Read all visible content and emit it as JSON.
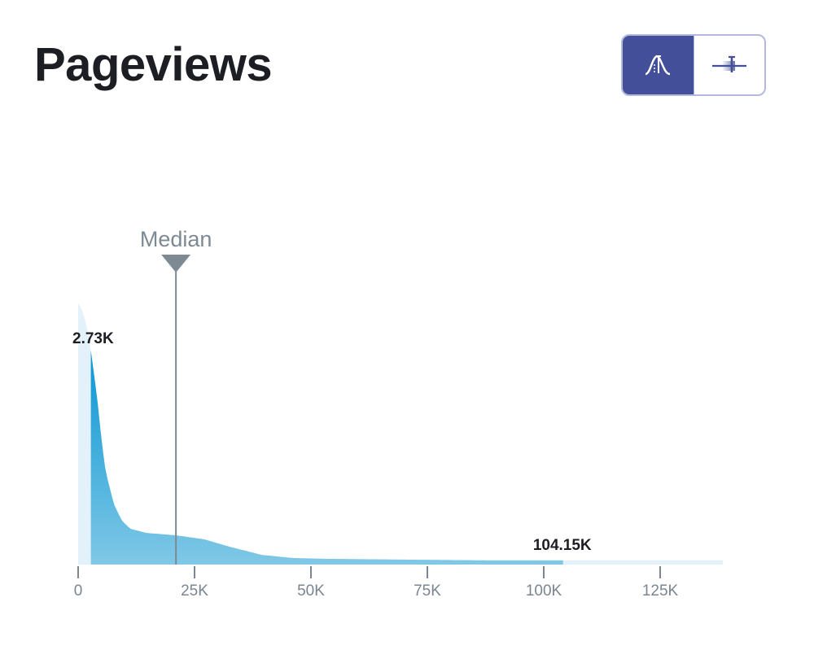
{
  "header": {
    "title": "Pageviews",
    "view_toggle": [
      {
        "name": "distribution-view",
        "icon": "bell-curve-icon",
        "active": true
      },
      {
        "name": "range-view",
        "icon": "range-marker-icon",
        "active": false
      }
    ]
  },
  "colors": {
    "toggle_active": "#434f98",
    "toggle_border": "#b4b8dd",
    "area_dark_top": "#0a96d4",
    "area_dark_bottom": "#80c8e6",
    "area_light": "#e2f1fa",
    "median": "#7d8a94",
    "axis": "#7b8690"
  },
  "chart_data": {
    "type": "area",
    "title": "Pageviews",
    "xlabel": "",
    "ylabel": "",
    "x_unit": "K",
    "xlim": [
      0,
      138.5
    ],
    "x_ticks": [
      0,
      25,
      50,
      75,
      100,
      125
    ],
    "x_tick_labels": [
      "0",
      "25K",
      "50K",
      "75K",
      "100K",
      "125K"
    ],
    "density_x": [
      0,
      1,
      2,
      2.73,
      4.1,
      5,
      5.9,
      7.7,
      9.4,
      11.2,
      14.7,
      21,
      27,
      32.4,
      39.4,
      46.2,
      53.2,
      70,
      88,
      104.15,
      120,
      138.5
    ],
    "density_y": [
      1.0,
      0.97,
      0.9,
      0.82,
      0.636,
      0.48,
      0.356,
      0.23,
      0.168,
      0.137,
      0.121,
      0.112,
      0.097,
      0.069,
      0.037,
      0.025,
      0.022,
      0.019,
      0.016,
      0.016,
      0.016,
      0.016
    ],
    "highlight_range": [
      2.73,
      104.15
    ],
    "range_labels": {
      "low": "2.73K",
      "high": "104.15K"
    },
    "median": {
      "label": "Median",
      "value": 21
    }
  }
}
